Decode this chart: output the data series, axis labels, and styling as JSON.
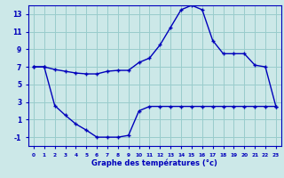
{
  "hours": [
    0,
    1,
    2,
    3,
    4,
    5,
    6,
    7,
    8,
    9,
    10,
    11,
    12,
    13,
    14,
    15,
    16,
    17,
    18,
    19,
    20,
    21,
    22,
    23
  ],
  "temp_curve": [
    7.0,
    7.0,
    6.7,
    6.5,
    6.3,
    6.2,
    6.2,
    6.5,
    6.6,
    6.6,
    7.5,
    8.0,
    9.5,
    11.5,
    13.5,
    14.0,
    13.5,
    10.0,
    8.5,
    8.5,
    8.5,
    7.2,
    7.0,
    2.5
  ],
  "dew_curve": [
    7.0,
    7.0,
    2.6,
    1.5,
    0.5,
    -0.2,
    -1.0,
    -1.0,
    -1.0,
    -0.8,
    2.0,
    2.5,
    2.5,
    2.5,
    2.5,
    2.5,
    2.5,
    2.5,
    2.5,
    2.5,
    2.5,
    2.5,
    2.5,
    2.5
  ],
  "bg_color": "#cce8e8",
  "line_color": "#0000bb",
  "grid_color": "#99cccc",
  "xlabel": "Graphe des températures (°c)",
  "ylim": [
    -2,
    14
  ],
  "yticks": [
    -1,
    1,
    3,
    5,
    7,
    9,
    11,
    13
  ],
  "xticks": [
    0,
    1,
    2,
    3,
    4,
    5,
    6,
    7,
    8,
    9,
    10,
    11,
    12,
    13,
    14,
    15,
    16,
    17,
    18,
    19,
    20,
    21,
    22,
    23
  ]
}
